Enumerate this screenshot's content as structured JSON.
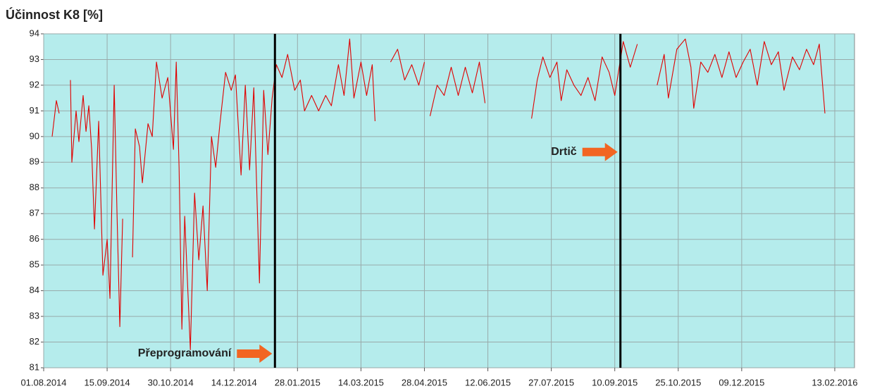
{
  "chart_data": {
    "type": "line",
    "title": "Účinnost K8 [%]",
    "x": [
      "2014-08-07",
      "2014-08-10",
      "2014-08-12",
      "2014-08-15",
      "2014-08-20",
      "2014-08-21",
      "2014-08-24",
      "2014-08-26",
      "2014-08-29",
      "2014-08-31",
      "2014-09-02",
      "2014-09-04",
      "2014-09-06",
      "2014-09-09",
      "2014-09-12",
      "2014-09-15",
      "2014-09-17",
      "2014-09-20",
      "2014-09-22",
      "2014-09-24",
      "2014-09-26",
      "2014-09-29",
      "2014-10-03",
      "2014-10-05",
      "2014-10-08",
      "2014-10-10",
      "2014-10-14",
      "2014-10-17",
      "2014-10-20",
      "2014-10-24",
      "2014-10-28",
      "2014-11-01",
      "2014-11-03",
      "2014-11-05",
      "2014-11-07",
      "2014-11-09",
      "2014-11-12",
      "2014-11-13",
      "2014-11-16",
      "2014-11-19",
      "2014-11-22",
      "2014-11-25",
      "2014-11-28",
      "2014-12-01",
      "2014-12-04",
      "2014-12-08",
      "2014-12-12",
      "2014-12-15",
      "2014-12-19",
      "2014-12-22",
      "2014-12-25",
      "2014-12-28",
      "2015-01-01",
      "2015-01-04",
      "2015-01-07",
      "2015-01-10",
      "2015-01-13",
      "2015-01-17",
      "2015-01-21",
      "2015-01-26",
      "2015-01-30",
      "2015-02-02",
      "2015-02-07",
      "2015-02-12",
      "2015-02-17",
      "2015-02-21",
      "2015-02-26",
      "2015-03-02",
      "2015-03-06",
      "2015-03-09",
      "2015-03-14",
      "2015-03-18",
      "2015-03-22",
      "2015-03-24",
      "2015-03-30",
      "2015-04-04",
      "2015-04-09",
      "2015-04-14",
      "2015-04-19",
      "2015-04-24",
      "2015-04-28",
      "2015-05-01",
      "2015-05-02",
      "2015-05-07",
      "2015-05-12",
      "2015-05-17",
      "2015-05-22",
      "2015-05-27",
      "2015-06-01",
      "2015-06-06",
      "2015-06-10",
      "2015-06-20",
      "2015-07-13",
      "2015-07-17",
      "2015-07-21",
      "2015-07-26",
      "2015-07-31",
      "2015-08-03",
      "2015-08-07",
      "2015-08-12",
      "2015-08-17",
      "2015-08-22",
      "2015-08-27",
      "2015-09-01",
      "2015-09-06",
      "2015-09-10",
      "2015-09-16",
      "2015-09-21",
      "2015-09-26",
      "2015-10-02",
      "2015-10-10",
      "2015-10-15",
      "2015-10-18",
      "2015-10-24",
      "2015-10-30",
      "2015-11-03",
      "2015-11-05",
      "2015-11-10",
      "2015-11-15",
      "2015-11-20",
      "2015-11-25",
      "2015-11-30",
      "2015-12-05",
      "2015-12-10",
      "2015-12-15",
      "2015-12-20",
      "2015-12-25",
      "2015-12-30",
      "2016-01-04",
      "2016-01-08",
      "2016-01-14",
      "2016-01-19",
      "2016-01-24",
      "2016-01-29",
      "2016-02-02",
      "2016-02-06"
    ],
    "series": [
      {
        "color": "#e00000",
        "values": [
          90.0,
          91.4,
          90.9,
          null,
          92.2,
          89.0,
          91.0,
          89.8,
          91.6,
          90.2,
          91.2,
          89.5,
          86.4,
          90.6,
          84.6,
          86.0,
          83.7,
          92.0,
          87.0,
          82.6,
          86.8,
          null,
          85.3,
          90.3,
          89.6,
          88.2,
          90.5,
          90.0,
          92.9,
          91.5,
          92.3,
          89.5,
          92.9,
          88.8,
          82.5,
          86.9,
          83.0,
          81.7,
          87.8,
          85.2,
          87.3,
          84.0,
          90.0,
          88.8,
          90.5,
          92.5,
          91.8,
          92.4,
          88.5,
          92.0,
          88.7,
          91.9,
          84.3,
          91.8,
          89.3,
          91.5,
          92.8,
          92.3,
          93.2,
          91.8,
          92.2,
          91.0,
          91.6,
          91.0,
          91.6,
          91.2,
          92.8,
          91.6,
          93.8,
          91.5,
          92.9,
          91.6,
          92.8,
          90.6,
          null,
          92.9,
          93.4,
          92.2,
          92.8,
          92.0,
          92.9,
          null,
          90.8,
          92.0,
          91.6,
          92.7,
          91.6,
          92.7,
          91.7,
          92.9,
          91.3,
          null,
          90.7,
          92.2,
          93.1,
          92.3,
          92.9,
          91.4,
          92.6,
          92.0,
          91.6,
          92.3,
          91.4,
          93.1,
          92.5,
          91.6,
          93.7,
          92.7,
          93.6,
          null,
          92.0,
          93.2,
          91.5,
          93.4,
          93.8,
          92.7,
          91.1,
          92.9,
          92.5,
          93.2,
          92.3,
          93.3,
          92.3,
          92.9,
          93.4,
          92.0,
          93.7,
          92.8,
          93.3,
          91.8,
          93.1,
          92.6,
          93.4,
          92.8,
          93.6,
          90.9
        ]
      }
    ],
    "xlim": [
      "2014-08-01",
      "2016-02-27"
    ],
    "xticks": [
      {
        "value": "2014-08-01",
        "label": "01.08.2014"
      },
      {
        "value": "2014-09-15",
        "label": "15.09.2014"
      },
      {
        "value": "2014-10-30",
        "label": "30.10.2014"
      },
      {
        "value": "2014-12-14",
        "label": "14.12.2014"
      },
      {
        "value": "2015-01-28",
        "label": "28.01.2015"
      },
      {
        "value": "2015-03-14",
        "label": "14.03.2015"
      },
      {
        "value": "2015-04-28",
        "label": "28.04.2015"
      },
      {
        "value": "2015-06-12",
        "label": "12.06.2015"
      },
      {
        "value": "2015-07-27",
        "label": "27.07.2015"
      },
      {
        "value": "2015-09-10",
        "label": "10.09.2015"
      },
      {
        "value": "2015-10-25",
        "label": "25.10.2015"
      },
      {
        "value": "2015-12-09",
        "label": "09.12.2015"
      },
      {
        "value": "2016-02-13",
        "label": "13.02.2016"
      }
    ],
    "ylim": [
      81,
      94
    ],
    "yticks": [
      81,
      82,
      83,
      84,
      85,
      86,
      87,
      88,
      89,
      90,
      91,
      92,
      93,
      94
    ],
    "grid": true,
    "background": "#b5ecec",
    "events": [
      {
        "x": "2015-01-12",
        "y": 81.55,
        "label": "Přeprogramování"
      },
      {
        "x": "2015-09-14",
        "y": 89.4,
        "label": "Drtič"
      }
    ]
  }
}
